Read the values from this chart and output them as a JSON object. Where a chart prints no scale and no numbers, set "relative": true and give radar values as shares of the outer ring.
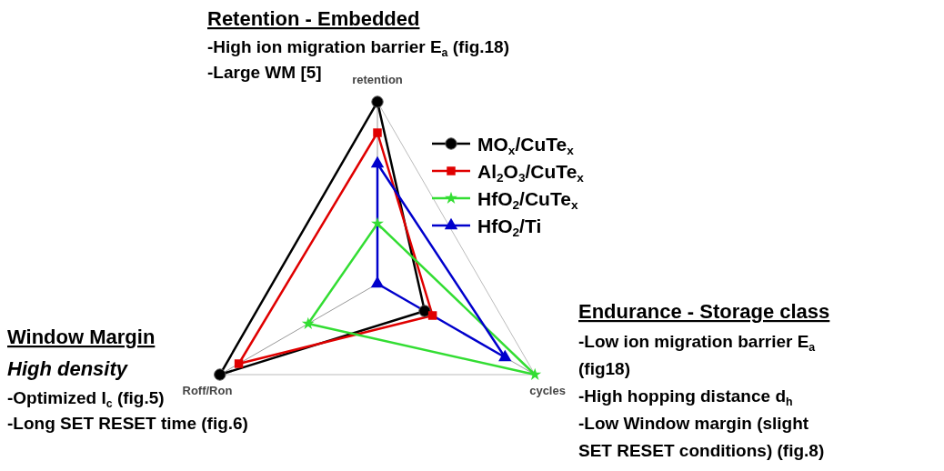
{
  "chart_data": {
    "type": "radar",
    "relative": true,
    "categories": [
      "retention",
      "cycles",
      "Roff/Ron"
    ],
    "legend": "right",
    "series": [
      {
        "name": "MO$_{x}$/CuTe$_{x}$",
        "color": "#000000",
        "marker": "circle",
        "values": [
          1,
          0.3,
          1
        ]
      },
      {
        "name": "Al$_{2}$O$_{3}$/CuTe$_{x}$",
        "color": "#e00000",
        "marker": "square",
        "values": [
          0.83,
          0.35,
          0.88
        ]
      },
      {
        "name": "HfO$_{2}$/CuTe$_{x}$",
        "color": "#33dd33",
        "marker": "star",
        "values": [
          0.33,
          1,
          0.44
        ]
      },
      {
        "name": "HfO$_{2}$/Ti",
        "color": "#0000cc",
        "marker": "triangle",
        "values": [
          0.66,
          0.81,
          0
        ]
      }
    ],
    "annotations": [
      "Retention - Embedded",
      "-High ion migration barrier E$_{a}$ (fig.18)",
      "-Large WM [5]",
      "Window Margin",
      "High density",
      "-Optimized I$_{c}$ (fig.5)",
      "-Long SET RESET time (fig.6)",
      "Endurance - Storage class",
      "-Low ion migration barrier E$_{a}$",
      "(fig18)",
      "-High hopping distance d$_{h}$",
      "-Low Window margin (slight",
      "SET RESET conditions) (fig.8)"
    ]
  }
}
